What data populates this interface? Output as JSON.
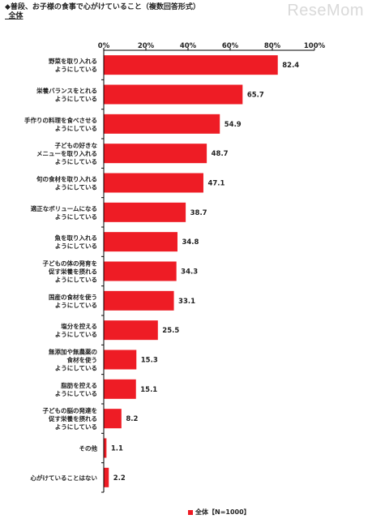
{
  "header": {
    "title": "◆普段、お子様の食事で心がけていること（複数回答形式）",
    "subtitle": "_全体"
  },
  "brand": {
    "logo": "ReseMom"
  },
  "colors": {
    "bar": "#ee1c25",
    "grid": "#000000",
    "logo": "#d9d9d9"
  },
  "chart_data": {
    "type": "bar",
    "orientation": "horizontal",
    "categories": [
      "野菜を取り入れる\nようにしている",
      "栄養バランスをとれる\nようにしている",
      "手作りの料理を食べさせる\nようにしている",
      "子どもの好きな\nメニューを取り入れる\nようにしている",
      "旬の食材を取り入れる\nようにしている",
      "適正なボリュームになる\nようにしている",
      "魚を取り入れる\nようにしている",
      "子どもの体の発育を\n促す栄養を摂れる\nようにしている",
      "国産の食材を使う\nようにしている",
      "塩分を控える\nようにしている",
      "無添加や無農薬の\n食材を使う\nようにしている",
      "脂肪を控える\nようにしている",
      "子どもの脳の発達を\n促す栄養を摂れる\nようにしている",
      "その他",
      "心がけていることはない"
    ],
    "series": [
      {
        "name": "全体【N=1000】",
        "values": [
          82.4,
          65.7,
          54.9,
          48.7,
          47.1,
          38.7,
          34.8,
          34.3,
          33.1,
          25.5,
          15.3,
          15.1,
          8.2,
          1.1,
          2.2
        ]
      }
    ],
    "value_labels": [
      "82.4",
      "65.7",
      "54.9",
      "48.7",
      "47.1",
      "38.7",
      "34.8",
      "34.3",
      "33.1",
      "25.5",
      "15.3",
      "15.1",
      "8.2",
      "1.1",
      "2.2"
    ],
    "xlim": [
      0,
      100
    ],
    "xticks": [
      "0%",
      "20%",
      "40%",
      "60%",
      "80%",
      "100%"
    ],
    "xtick_values": [
      0,
      20,
      40,
      60,
      80,
      100
    ],
    "xlabel": "",
    "ylabel": "",
    "grid": false,
    "legend": "bottom"
  }
}
